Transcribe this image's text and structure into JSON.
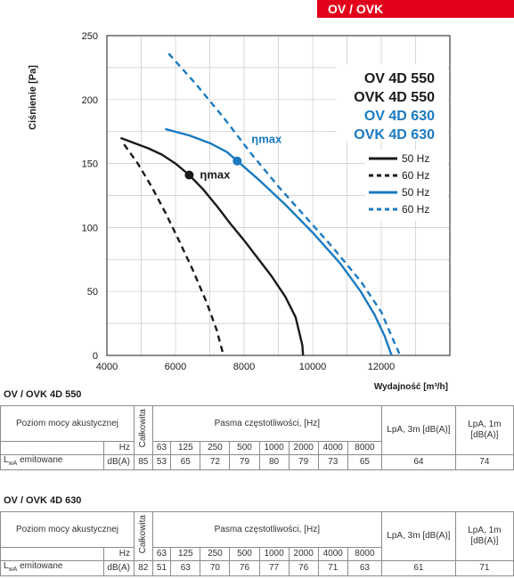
{
  "banner": "OV / OVK",
  "chart_data": {
    "type": "line",
    "xlabel": "Wydajność [m³/h]",
    "ylabel": "Ciśnienie [Pa]",
    "xlim": [
      4000,
      14000
    ],
    "ylim": [
      0,
      250
    ],
    "xticks": [
      4000,
      6000,
      8000,
      10000,
      12000
    ],
    "yticks": [
      0,
      50,
      100,
      150,
      200,
      250
    ],
    "grid": true,
    "model_labels": [
      {
        "text": "OV 4D 550",
        "color": "#1a1a1a"
      },
      {
        "text": "OVK 4D 550",
        "color": "#1a1a1a"
      },
      {
        "text": "OV 4D 630",
        "color": "#1b7ac0"
      },
      {
        "text": "OVK 4D 630",
        "color": "#1b7ac0"
      }
    ],
    "legend_position": "right",
    "series": [
      {
        "name": "50 Hz",
        "color": "#1a1a1a",
        "dash": false,
        "points": [
          [
            4400,
            170
          ],
          [
            4800,
            166
          ],
          [
            5200,
            162
          ],
          [
            5600,
            157
          ],
          [
            6000,
            150
          ],
          [
            6400,
            141
          ],
          [
            6800,
            130
          ],
          [
            7200,
            117
          ],
          [
            7600,
            103
          ],
          [
            8000,
            90
          ],
          [
            8400,
            76
          ],
          [
            8800,
            62
          ],
          [
            9200,
            46
          ],
          [
            9500,
            30
          ],
          [
            9700,
            8
          ],
          [
            9720,
            0
          ]
        ]
      },
      {
        "name": "60 Hz",
        "color": "#1a1a1a",
        "dash": true,
        "points": [
          [
            4500,
            165
          ],
          [
            4900,
            150
          ],
          [
            5300,
            132
          ],
          [
            5700,
            112
          ],
          [
            6100,
            90
          ],
          [
            6500,
            67
          ],
          [
            6900,
            42
          ],
          [
            7200,
            20
          ],
          [
            7400,
            0
          ]
        ]
      },
      {
        "name": "50 Hz",
        "color": "#1b7ac0",
        "dash": false,
        "points": [
          [
            5700,
            177
          ],
          [
            6400,
            172
          ],
          [
            7000,
            166
          ],
          [
            7500,
            159
          ],
          [
            7800,
            152
          ],
          [
            8400,
            138
          ],
          [
            9200,
            118
          ],
          [
            10000,
            96
          ],
          [
            10800,
            72
          ],
          [
            11400,
            50
          ],
          [
            11800,
            32
          ],
          [
            12100,
            15
          ],
          [
            12300,
            0
          ]
        ]
      },
      {
        "name": "60 Hz",
        "color": "#1b7ac0",
        "dash": true,
        "points": [
          [
            5800,
            236
          ],
          [
            6600,
            212
          ],
          [
            7400,
            186
          ],
          [
            8200,
            158
          ],
          [
            9000,
            132
          ],
          [
            9800,
            108
          ],
          [
            10600,
            84
          ],
          [
            11400,
            58
          ],
          [
            12000,
            34
          ],
          [
            12300,
            15
          ],
          [
            12550,
            0
          ]
        ]
      }
    ],
    "annotations": [
      {
        "text": "ηmax",
        "x": 6400,
        "y": 141,
        "color": "#1a1a1a"
      },
      {
        "text": "ηmax",
        "x": 7800,
        "y": 152,
        "color": "#1b7ac0"
      }
    ]
  },
  "tables": [
    {
      "title": "OV / OVK 4D 550",
      "col_label": "Poziom mocy akustycznej",
      "unit": "Hz",
      "total_label": "Całkowita",
      "band_label": "Pasma częstotliwości, [Hz]",
      "lpa3": "LpA, 3m [dB(A)]",
      "lpa1": "LpA, 1m [dB(A)]",
      "freqs": [
        "63",
        "125",
        "250",
        "500",
        "1000",
        "2000",
        "4000",
        "8000"
      ],
      "row_label": "emitowane",
      "row_label_prefix": "L",
      "row_label_sub": "wA",
      "row_unit": "dB(A)",
      "total": "85",
      "values": [
        "53",
        "65",
        "72",
        "79",
        "80",
        "79",
        "73",
        "65"
      ],
      "lpa3_val": "64",
      "lpa1_val": "74"
    },
    {
      "title": "OV / OVK 4D 630",
      "col_label": "Poziom mocy akustycznej",
      "unit": "Hz",
      "total_label": "Całkowita",
      "band_label": "Pasma częstotliwości, [Hz]",
      "lpa3": "LpA, 3m [dB(A)]",
      "lpa1": "LpA, 1m [dB(A)]",
      "freqs": [
        "63",
        "125",
        "250",
        "500",
        "1000",
        "2000",
        "4000",
        "8000"
      ],
      "row_label": "emitowane",
      "row_label_prefix": "L",
      "row_label_sub": "wA",
      "row_unit": "dB(A)",
      "total": "82",
      "values": [
        "51",
        "63",
        "70",
        "76",
        "77",
        "76",
        "71",
        "63"
      ],
      "lpa3_val": "61",
      "lpa1_val": "71"
    }
  ]
}
